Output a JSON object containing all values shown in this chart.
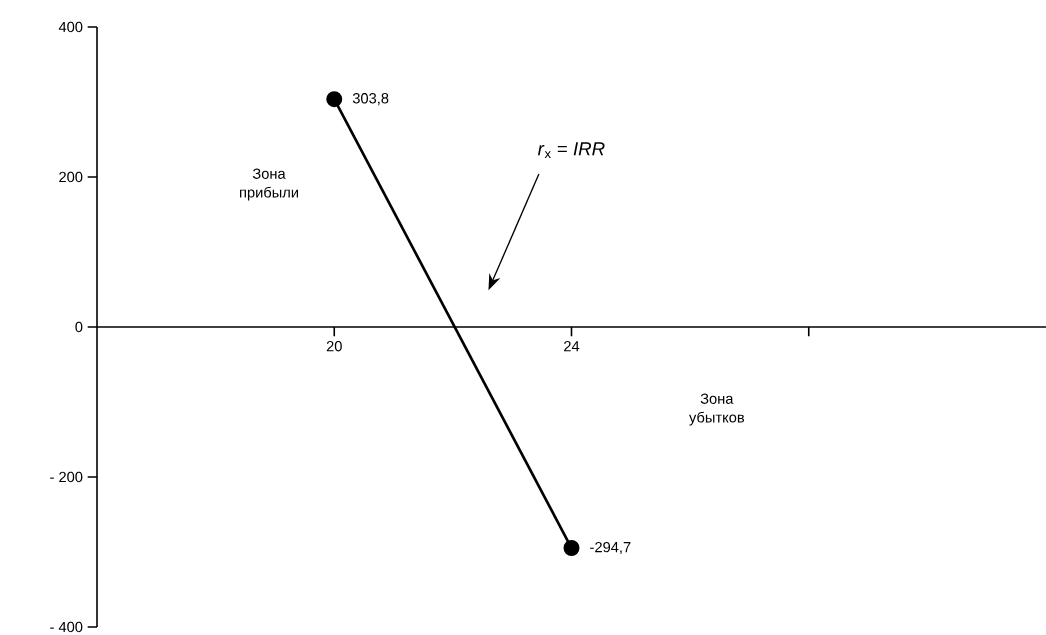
{
  "chart_data": {
    "type": "line",
    "x": [
      20,
      24
    ],
    "values": [
      303.8,
      -294.7
    ],
    "value_labels": [
      "303,8",
      "-294,7"
    ],
    "color": "#000000",
    "marker": "circle",
    "line_style": "solid",
    "xlim": [
      16,
      32
    ],
    "xticks": [
      20,
      24,
      {
        "value": 28,
        "label": null
      }
    ],
    "ylim": [
      -400,
      400
    ],
    "yticks": [
      {
        "value": -400,
        "label": "- 400"
      },
      {
        "value": -200,
        "label": "- 200"
      },
      0,
      200,
      400
    ],
    "annotations": [
      "Зона прибыли",
      "Зона убытков",
      "*r*$_{x}$ = *IRR*"
    ]
  }
}
